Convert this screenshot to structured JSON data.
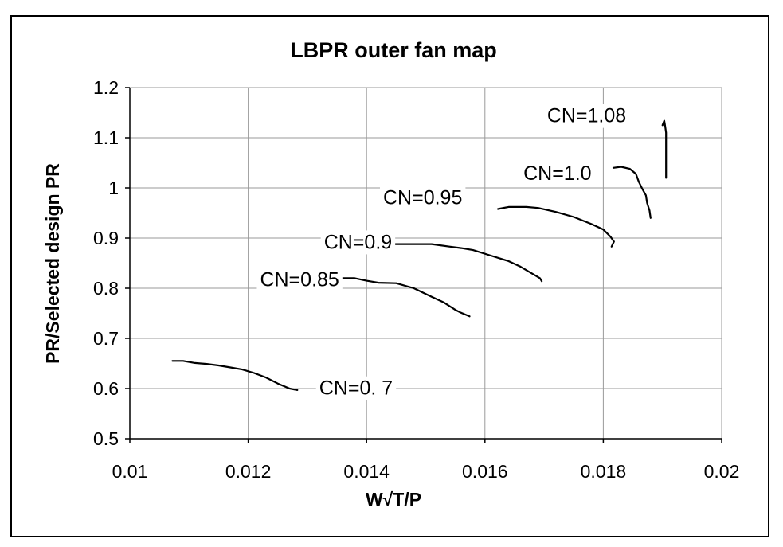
{
  "chart_data": {
    "type": "line",
    "title": "LBPR outer fan map",
    "xlabel": "W√T/P",
    "ylabel": "PR/Selected design PR",
    "xlim": [
      0.01,
      0.02
    ],
    "ylim": [
      0.5,
      1.2
    ],
    "x_ticks": [
      0.01,
      0.012,
      0.014,
      0.016,
      0.018,
      0.02
    ],
    "x_tick_labels": [
      "0.01",
      "0.012",
      "0.014",
      "0.016",
      "0.018",
      "0.02"
    ],
    "y_ticks": [
      0.5,
      0.6,
      0.7,
      0.8,
      0.9,
      1.0,
      1.1,
      1.2
    ],
    "y_tick_labels": [
      "0.5",
      "0.6",
      "0.7",
      "0.8",
      "0.9",
      "1",
      "1.1",
      "1.2"
    ],
    "grid": true,
    "legend": "none",
    "line_color": "#000000",
    "grid_color": "#9a9a9a",
    "series": [
      {
        "name": "CN=0. 7",
        "label_at": [
          0.0132,
          0.602
        ],
        "x": [
          0.01072,
          0.0109,
          0.0111,
          0.0113,
          0.0115,
          0.0117,
          0.0119,
          0.0121,
          0.0123,
          0.0125,
          0.0127,
          0.01283
        ],
        "y": [
          0.655,
          0.655,
          0.651,
          0.649,
          0.646,
          0.642,
          0.638,
          0.631,
          0.622,
          0.61,
          0.6,
          0.597
        ]
      },
      {
        "name": "CN=0.85",
        "label_at": [
          0.0122,
          0.818
        ],
        "x": [
          0.01325,
          0.0135,
          0.0138,
          0.014,
          0.0142,
          0.0145,
          0.0148,
          0.0151,
          0.0153,
          0.0155,
          0.01558,
          0.01574
        ],
        "y": [
          0.82,
          0.82,
          0.82,
          0.815,
          0.811,
          0.81,
          0.8,
          0.783,
          0.772,
          0.757,
          0.752,
          0.744
        ]
      },
      {
        "name": "CN=0.9",
        "label_at": [
          0.01328,
          0.893
        ],
        "x": [
          0.01437,
          0.0147,
          0.0151,
          0.0154,
          0.0156,
          0.0158,
          0.0161,
          0.0164,
          0.0166,
          0.0168,
          0.01693,
          0.01696
        ],
        "y": [
          0.888,
          0.888,
          0.888,
          0.883,
          0.88,
          0.876,
          0.865,
          0.854,
          0.843,
          0.829,
          0.82,
          0.814
        ]
      },
      {
        "name": "CN=0.95",
        "label_at": [
          0.01428,
          0.982
        ],
        "x": [
          0.01622,
          0.0164,
          0.0167,
          0.0169,
          0.0172,
          0.0175,
          0.0178,
          0.018,
          0.01812,
          0.01818,
          0.01814
        ],
        "y": [
          0.958,
          0.962,
          0.962,
          0.96,
          0.952,
          0.942,
          0.928,
          0.917,
          0.903,
          0.893,
          0.883
        ]
      },
      {
        "name": "CN=1.0",
        "label_at": [
          0.01665,
          1.03
        ],
        "x": [
          0.01817,
          0.0183,
          0.01845,
          0.01855,
          0.0186,
          0.01866,
          0.01872,
          0.01874,
          0.01878,
          0.0188
        ],
        "y": [
          1.04,
          1.042,
          1.038,
          1.028,
          1.012,
          0.998,
          0.985,
          0.97,
          0.955,
          0.94
        ]
      },
      {
        "name": "CN=1.08",
        "label_at": [
          0.01705,
          1.145
        ],
        "x": [
          0.01906,
          0.01906,
          0.01906,
          0.01904,
          0.01903,
          0.019
        ],
        "y": [
          1.02,
          1.07,
          1.11,
          1.127,
          1.134,
          1.125
        ]
      }
    ]
  }
}
